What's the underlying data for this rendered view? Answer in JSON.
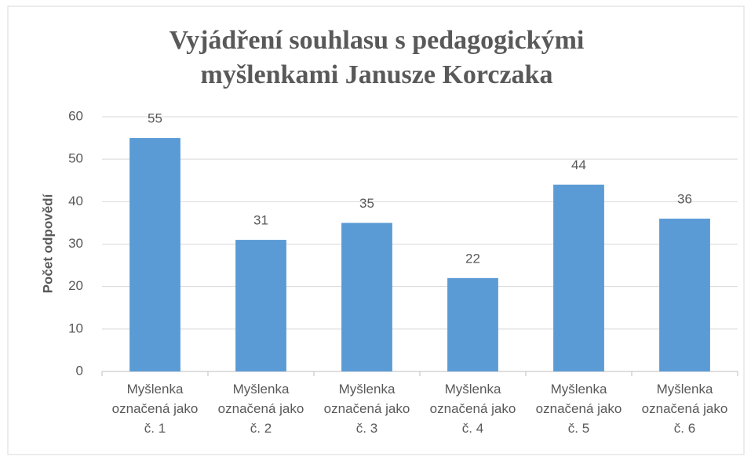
{
  "chart_data": {
    "type": "bar",
    "title": "Vyjádření souhlasu s pedagogickými myšlenkami Janusze Korczaka",
    "ylabel": "Počet odpovědí",
    "categories": [
      "Myšlenka označená jako č. 1",
      "Myšlenka označená jako č. 2",
      "Myšlenka označená jako č. 3",
      "Myšlenka označená jako č. 4",
      "Myšlenka označená jako č. 5",
      "Myšlenka označená jako č. 6"
    ],
    "values": [
      55,
      31,
      35,
      22,
      44,
      36
    ],
    "color": "#5b9bd5",
    "ylim": [
      0,
      60
    ],
    "yticks": [
      0,
      10,
      20,
      30,
      40,
      50,
      60
    ],
    "grid": true
  }
}
